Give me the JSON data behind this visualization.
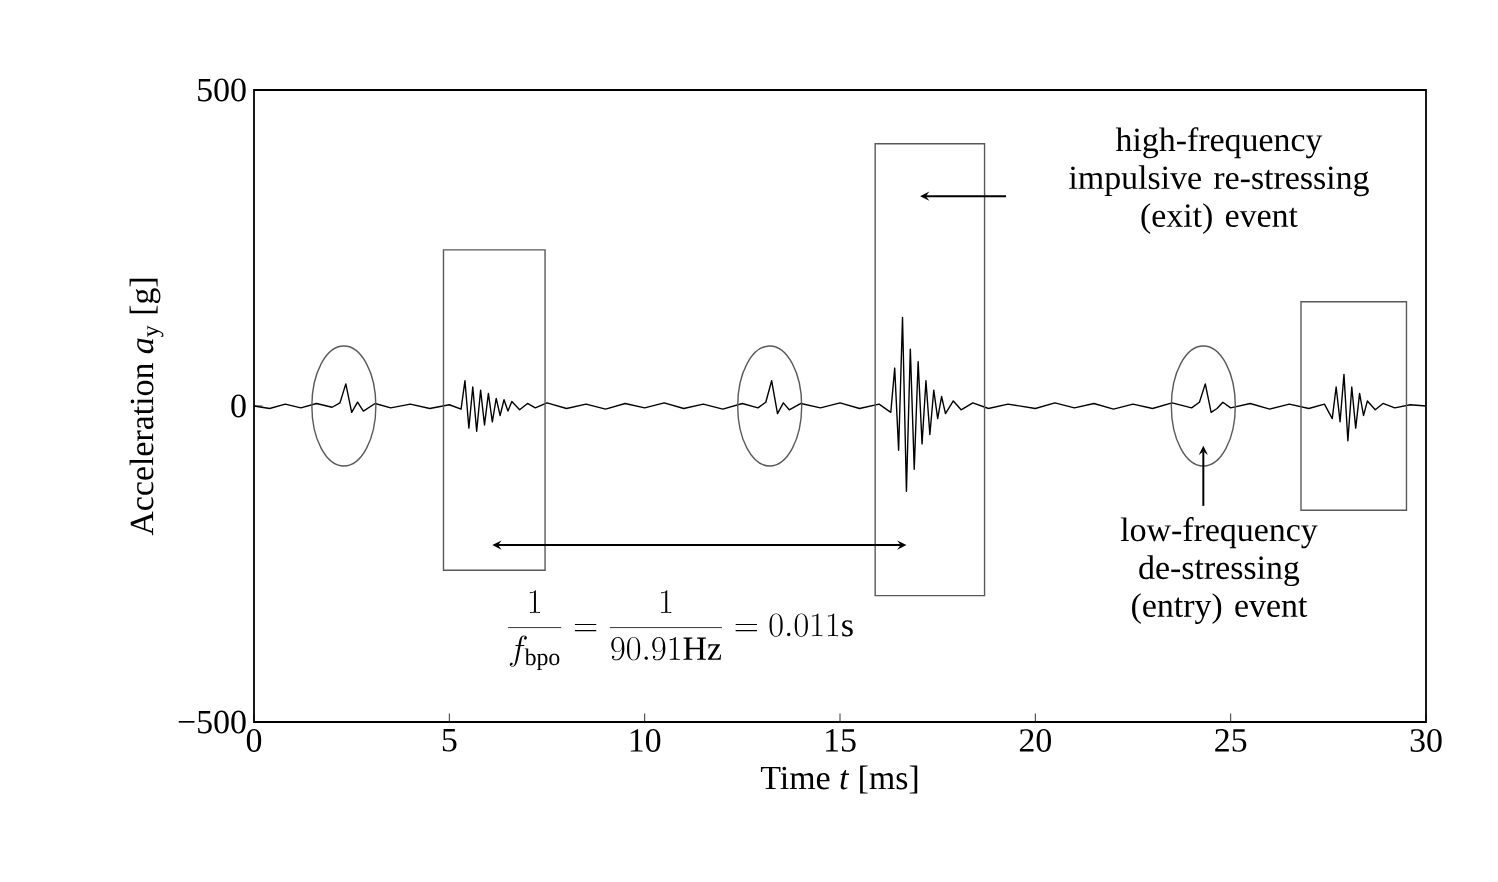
{
  "chart_data": {
    "type": "line",
    "xlabel": "Time *t* [ms]",
    "ylabel": "Acceleration *a*$_{y}$ [g]",
    "xlim": [
      0,
      30
    ],
    "ylim": [
      -500,
      500
    ],
    "xticks": [
      0,
      5,
      10,
      15,
      20,
      25,
      30
    ],
    "yticks": [
      {
        "value": -500,
        "label": "−500"
      },
      0,
      500
    ],
    "grid": false,
    "annotations": [
      "high-frequency impulsive re-stressing (exit) event",
      "low-frequency de-stressing (entry) event",
      "\\frac{1}{f_{\\mathrm{bpo}}}=\\frac{1}{90.91\\mathrm{Hz}}=0.011\\mathrm{s}"
    ],
    "series": [
      {
        "color": "#000000",
        "x": [
          0,
          0.4,
          0.8,
          1.2,
          1.6,
          2.0,
          2.2,
          2.35,
          2.5,
          2.65,
          2.8,
          3.1,
          3.5,
          4.0,
          4.5,
          5.0,
          5.3,
          5.4,
          5.5,
          5.6,
          5.7,
          5.8,
          5.9,
          6.0,
          6.1,
          6.2,
          6.3,
          6.4,
          6.5,
          6.6,
          6.8,
          7.0,
          7.2,
          7.5,
          8.0,
          8.5,
          9.0,
          9.5,
          10.0,
          10.5,
          11.0,
          11.5,
          12.0,
          12.5,
          12.9,
          13.1,
          13.25,
          13.4,
          13.55,
          13.7,
          14.0,
          14.5,
          15.0,
          15.5,
          16.0,
          16.3,
          16.4,
          16.5,
          16.6,
          16.7,
          16.8,
          16.9,
          17.0,
          17.1,
          17.2,
          17.3,
          17.4,
          17.5,
          17.6,
          17.7,
          17.9,
          18.1,
          18.4,
          18.8,
          19.3,
          20.0,
          20.5,
          21.0,
          21.5,
          22.0,
          22.5,
          23.0,
          23.5,
          24.0,
          24.2,
          24.35,
          24.5,
          24.65,
          24.8,
          25.0,
          25.5,
          26.0,
          26.5,
          27.0,
          27.4,
          27.6,
          27.7,
          27.8,
          27.9,
          28.0,
          28.1,
          28.2,
          28.3,
          28.4,
          28.5,
          28.7,
          28.9,
          29.2,
          29.6,
          30.0
        ],
        "values": [
          0,
          -4,
          3,
          -3,
          4,
          -2,
          5,
          35,
          -10,
          6,
          -8,
          4,
          -3,
          3,
          -4,
          2,
          -5,
          40,
          -35,
          30,
          -40,
          25,
          -30,
          20,
          -25,
          12,
          -15,
          10,
          -8,
          7,
          -6,
          4,
          -3,
          5,
          -4,
          3,
          -5,
          4,
          -3,
          5,
          -4,
          3,
          -5,
          4,
          -3,
          6,
          40,
          -12,
          5,
          -6,
          4,
          -3,
          5,
          -4,
          3,
          -10,
          60,
          -70,
          140,
          -135,
          90,
          -100,
          70,
          -60,
          40,
          -45,
          25,
          -20,
          15,
          -12,
          8,
          -6,
          5,
          -4,
          3,
          -4,
          5,
          -3,
          4,
          -5,
          3,
          -4,
          5,
          -3,
          6,
          35,
          -10,
          -4,
          6,
          -3,
          4,
          -5,
          3,
          -4,
          3,
          -20,
          30,
          -25,
          50,
          -55,
          30,
          -35,
          20,
          -15,
          8,
          -6,
          4,
          -3,
          2,
          0
        ]
      }
    ]
  }
}
